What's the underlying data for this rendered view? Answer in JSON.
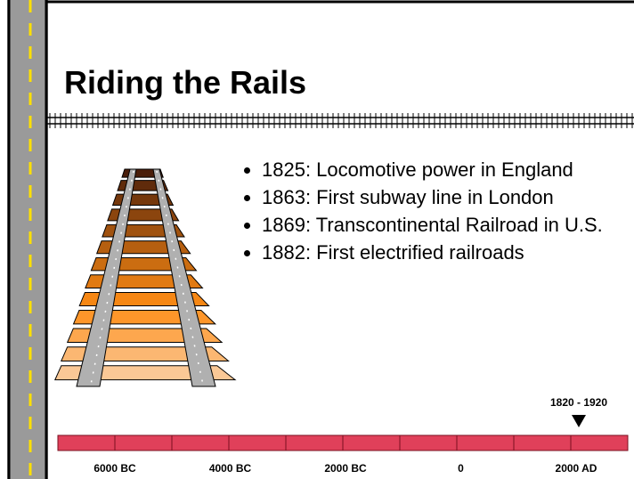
{
  "title": "Riding the Rails",
  "bullets": [
    "1825:  Locomotive power in England",
    "1863:  First subway line in London",
    "1869:  Transcontinental Railroad in U.S.",
    "1882:  First electrified railroads"
  ],
  "timeline": {
    "marker_label": "1820 - 1920",
    "labels": [
      "6000 BC",
      "4000 BC",
      "2000 BC",
      "0",
      "2000 AD"
    ]
  }
}
